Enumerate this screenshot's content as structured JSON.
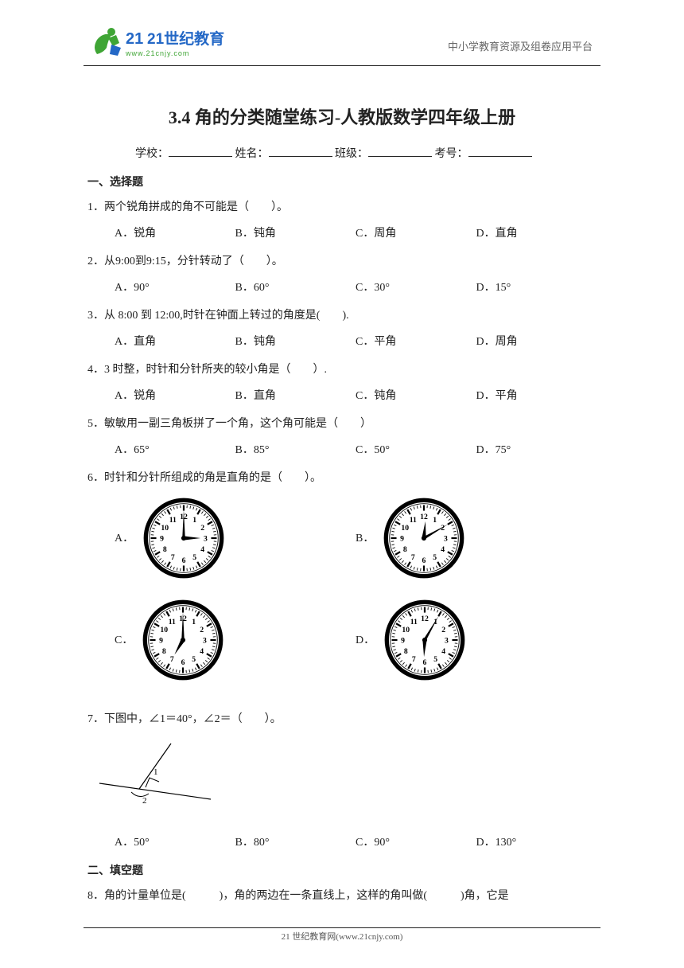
{
  "header": {
    "logo_cn": "21世纪教育",
    "logo_url": "www.21cnjy.com",
    "logo_mark": "21",
    "right_text": "中小学教育资源及组卷应用平台",
    "logo_colors": {
      "green": "#3fa535",
      "blue": "#2468c6",
      "text": "#2468c6"
    }
  },
  "title": "3.4 角的分类随堂练习-人教版数学四年级上册",
  "form": {
    "school": "学校：",
    "name": "姓名：",
    "class": "班级：",
    "exam_no": "考号："
  },
  "section1": "一、选择题",
  "section2": "二、填空题",
  "q1": {
    "stem": "1．两个锐角拼成的角不可能是（　　）。",
    "A": "A．锐角",
    "B": "B．钝角",
    "C": "C．周角",
    "D": "D．直角"
  },
  "q2": {
    "stem": "2．从9:00到9:15，分针转动了（　　）。",
    "A": "A．90°",
    "B": "B．60°",
    "C": "C．30°",
    "D": "D．15°"
  },
  "q3": {
    "stem": "3．从 8:00 到 12:00,时针在钟面上转过的角度是(　　).",
    "A": "A．直角",
    "B": "B．钝角",
    "C": "C．平角",
    "D": "D．周角"
  },
  "q4": {
    "stem": "4．3 时整，时针和分针所夹的较小角是（　　）.",
    "A": "A．锐角",
    "B": "B．直角",
    "C": "C．钝角",
    "D": "D．平角"
  },
  "q5": {
    "stem": "5．敏敏用一副三角板拼了一个角，这个角可能是（　　）",
    "A": "A．65°",
    "B": "B．85°",
    "C": "C．50°",
    "D": "D．75°"
  },
  "q6": {
    "stem": "6．时针和分针所组成的角是直角的是（　　）。",
    "labels": {
      "A": "A．",
      "B": "B．",
      "C": "C．",
      "D": "D．"
    },
    "clocks": [
      {
        "hour": 3,
        "minute": 0
      },
      {
        "hour": 12,
        "minute": 10
      },
      {
        "hour": 7,
        "minute": 0
      },
      {
        "hour": 6,
        "minute": 5
      }
    ],
    "clock_style": {
      "face_fill": "#ffffff",
      "stroke": "#000000",
      "rim_width": 4,
      "dot_fill": "#000000"
    }
  },
  "q7": {
    "stem": "7．下图中，∠1＝40°，∠2＝（　　）。",
    "A": "A．50°",
    "B": "B．80°",
    "C": "C．90°",
    "D": "D．130°",
    "figure": {
      "width": 150,
      "height": 105,
      "stroke": "#000000",
      "label1": "1",
      "label2": "2"
    }
  },
  "q8": {
    "stem": "8．角的计量单位是(　　　)，角的两边在一条直线上，这样的角叫做(　　　)角，它是"
  },
  "footer": "21 世纪教育网(www.21cnjy.com)"
}
